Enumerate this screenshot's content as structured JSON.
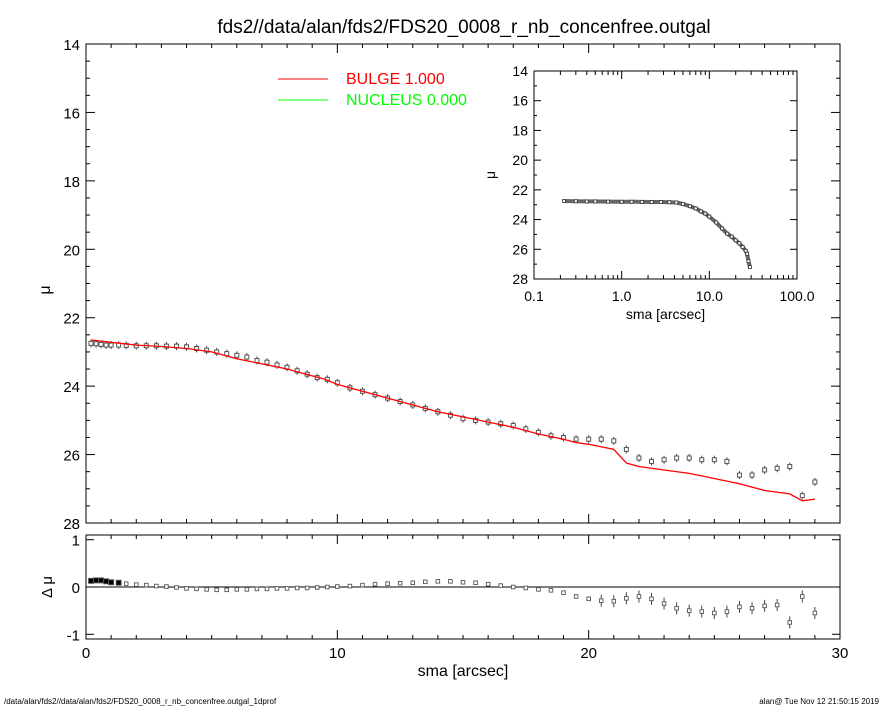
{
  "title": "fds2//data/alan/fds2/FDS20_0008_r_nb_concenfree.outgal",
  "footer": {
    "left": "/data/alan/fds2//data/alan/fds2/FDS20_0008_r_nb_concenfree.outgal_1dprof",
    "right": "alan@  Tue Nov 12 21:50:15 2019"
  },
  "chart_data": [
    {
      "name": "main-profile",
      "type": "scatter",
      "xlabel": "",
      "ylabel": "μ",
      "xlim": [
        0,
        30
      ],
      "ylim": [
        28,
        14
      ],
      "y_inverted": true,
      "y_ticks": [
        14,
        16,
        18,
        20,
        22,
        24,
        26,
        28
      ],
      "x_ticks": [
        0,
        10,
        20,
        30
      ],
      "x_tick_labels_shown": false,
      "legend": {
        "placement": "top-left",
        "entries": [
          {
            "name": "BULGE  1.000",
            "color": "#ff0000"
          },
          {
            "name": "NUCLEUS  0.000",
            "color": "#00ff00"
          }
        ]
      },
      "series": [
        {
          "name": "BULGE  1.000",
          "kind": "line",
          "color": "#ff0000",
          "x": [
            0.2,
            1.0,
            2.0,
            3.0,
            4.0,
            5.0,
            6.0,
            7.0,
            8.0,
            8.5,
            9.0,
            9.5,
            10.0,
            11.0,
            12.0,
            13.0,
            14.0,
            15.0,
            16.0,
            17.0,
            18.0,
            19.0,
            19.5,
            20.0,
            21.0,
            21.5,
            22.0,
            23.0,
            24.0,
            25.0,
            26.0,
            27.0,
            28.0,
            28.5,
            29.0
          ],
          "y": [
            22.65,
            22.72,
            22.8,
            22.84,
            22.9,
            23.0,
            23.2,
            23.35,
            23.5,
            23.6,
            23.7,
            23.8,
            23.95,
            24.15,
            24.35,
            24.55,
            24.75,
            24.9,
            25.05,
            25.2,
            25.4,
            25.55,
            25.65,
            25.7,
            25.85,
            26.25,
            26.35,
            26.45,
            26.55,
            26.7,
            26.85,
            27.05,
            27.15,
            27.35,
            27.3
          ]
        },
        {
          "name": "data",
          "kind": "points",
          "color": "#555555",
          "x": [
            0.2,
            0.4,
            0.6,
            0.8,
            1.0,
            1.3,
            1.6,
            2.0,
            2.4,
            2.8,
            3.2,
            3.6,
            4.0,
            4.4,
            4.8,
            5.2,
            5.6,
            6.0,
            6.4,
            6.8,
            7.2,
            7.6,
            8.0,
            8.4,
            8.8,
            9.2,
            9.6,
            10.0,
            10.5,
            11.0,
            11.5,
            12.0,
            12.5,
            13.0,
            13.5,
            14.0,
            14.5,
            15.0,
            15.5,
            16.0,
            16.5,
            17.0,
            17.5,
            18.0,
            18.5,
            19.0,
            19.5,
            20.0,
            20.5,
            21.0,
            21.5,
            22.0,
            22.5,
            23.0,
            23.5,
            24.0,
            24.5,
            25.0,
            25.5,
            26.0,
            26.5,
            27.0,
            27.5,
            28.0,
            28.5,
            29.0
          ],
          "y": [
            22.75,
            22.76,
            22.78,
            22.8,
            22.8,
            22.8,
            22.81,
            22.82,
            22.82,
            22.82,
            22.83,
            22.83,
            22.85,
            22.9,
            22.95,
            23.0,
            23.05,
            23.1,
            23.15,
            23.25,
            23.3,
            23.38,
            23.45,
            23.55,
            23.65,
            23.75,
            23.8,
            23.9,
            24.05,
            24.15,
            24.25,
            24.35,
            24.45,
            24.55,
            24.65,
            24.75,
            24.85,
            24.95,
            25.0,
            25.05,
            25.1,
            25.15,
            25.25,
            25.35,
            25.45,
            25.5,
            25.55,
            25.55,
            25.55,
            25.6,
            25.85,
            26.1,
            26.2,
            26.15,
            26.1,
            26.1,
            26.15,
            26.15,
            26.2,
            26.6,
            26.6,
            26.45,
            26.4,
            26.35,
            27.2,
            26.8
          ]
        }
      ]
    },
    {
      "name": "inset-log-profile",
      "type": "scatter",
      "xlabel": "sma [arcsec]",
      "ylabel": "μ",
      "x_scale": "log",
      "xlim": [
        0.1,
        100.0
      ],
      "ylim": [
        28,
        14
      ],
      "y_inverted": true,
      "x_tick_labels": [
        "0.1",
        "1.0",
        "10.0",
        "100.0"
      ],
      "y_ticks": [
        14,
        16,
        18,
        20,
        22,
        24,
        26,
        28
      ],
      "series": [
        {
          "name": "data",
          "kind": "points",
          "color": "#555555",
          "x": [
            0.22,
            0.3,
            0.4,
            0.5,
            0.7,
            1.0,
            1.3,
            1.7,
            2.2,
            2.8,
            3.5,
            4.2,
            5.0,
            6.0,
            7.0,
            8.0,
            9.0,
            10.0,
            12.0,
            14.0,
            16.0,
            18.0,
            20.0,
            22.0,
            24.0,
            26.0,
            27.0,
            28.0,
            29.0
          ],
          "y": [
            22.75,
            22.77,
            22.78,
            22.78,
            22.79,
            22.8,
            22.8,
            22.81,
            22.82,
            22.82,
            22.83,
            22.85,
            22.95,
            23.1,
            23.25,
            23.45,
            23.6,
            23.8,
            24.2,
            24.6,
            24.95,
            25.15,
            25.4,
            25.6,
            25.85,
            26.1,
            26.3,
            26.8,
            27.2
          ]
        }
      ]
    },
    {
      "name": "residuals",
      "type": "scatter",
      "xlabel": "sma [arcsec]",
      "ylabel": "Δ μ",
      "xlim": [
        0,
        30
      ],
      "ylim": [
        -1.1,
        1.1
      ],
      "x_ticks": [
        0,
        10,
        20,
        30
      ],
      "y_ticks": [
        -1,
        0,
        1
      ],
      "reference_line": 0,
      "series": [
        {
          "name": "residual",
          "kind": "points",
          "color": "#555555",
          "x": [
            0.2,
            0.4,
            0.6,
            0.8,
            1.0,
            1.3,
            1.6,
            2.0,
            2.4,
            2.8,
            3.2,
            3.6,
            4.0,
            4.4,
            4.8,
            5.2,
            5.6,
            6.0,
            6.4,
            6.8,
            7.2,
            7.6,
            8.0,
            8.4,
            8.8,
            9.2,
            9.6,
            10.0,
            10.5,
            11.0,
            11.5,
            12.0,
            12.5,
            13.0,
            13.5,
            14.0,
            14.5,
            15.0,
            15.5,
            16.0,
            16.5,
            17.0,
            17.5,
            18.0,
            18.5,
            19.0,
            19.5,
            20.0,
            20.5,
            21.0,
            21.5,
            22.0,
            22.5,
            23.0,
            23.5,
            24.0,
            24.5,
            25.0,
            25.5,
            26.0,
            26.5,
            27.0,
            27.5,
            28.0,
            28.5,
            29.0
          ],
          "y": [
            0.13,
            0.14,
            0.14,
            0.12,
            0.1,
            0.09,
            0.07,
            0.05,
            0.04,
            0.02,
            0.01,
            -0.01,
            -0.03,
            -0.04,
            -0.05,
            -0.06,
            -0.06,
            -0.05,
            -0.05,
            -0.04,
            -0.04,
            -0.03,
            -0.03,
            -0.02,
            -0.02,
            -0.01,
            0.0,
            0.01,
            0.02,
            0.04,
            0.06,
            0.07,
            0.08,
            0.09,
            0.11,
            0.12,
            0.12,
            0.1,
            0.09,
            0.06,
            0.03,
            0.0,
            -0.02,
            -0.05,
            -0.07,
            -0.12,
            -0.2,
            -0.25,
            -0.29,
            -0.3,
            -0.24,
            -0.2,
            -0.25,
            -0.35,
            -0.45,
            -0.5,
            -0.52,
            -0.55,
            -0.52,
            -0.42,
            -0.45,
            -0.4,
            -0.38,
            -0.75,
            -0.2,
            -0.55
          ]
        }
      ]
    }
  ]
}
